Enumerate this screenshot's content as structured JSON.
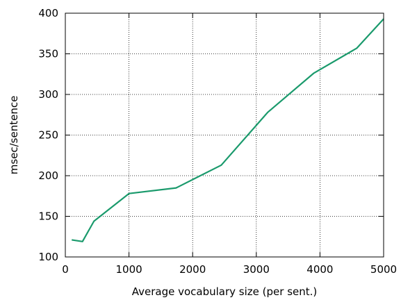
{
  "chart_data": {
    "type": "line",
    "title": "",
    "xlabel": "Average vocabulary size (per sent.)",
    "ylabel": "msec/sentence",
    "xlim": [
      0,
      5000
    ],
    "ylim": [
      100,
      400
    ],
    "xticks": [
      0,
      1000,
      2000,
      3000,
      4000,
      5000
    ],
    "yticks": [
      100,
      150,
      200,
      250,
      300,
      350,
      400
    ],
    "xtick_labels": [
      "0",
      "1000",
      "2000",
      "3000",
      "4000",
      "5000"
    ],
    "ytick_labels": [
      "100",
      "150",
      "200",
      "250",
      "300",
      "350",
      "400"
    ],
    "grid": true,
    "legend": "none",
    "series": [
      {
        "color": "#1a9a6c",
        "x": [
          100,
          270,
          450,
          1000,
          1740,
          2450,
          3180,
          3900,
          4580,
          5000
        ],
        "y": [
          121,
          119,
          144,
          178,
          185,
          213,
          278,
          326,
          357,
          393
        ]
      }
    ]
  }
}
